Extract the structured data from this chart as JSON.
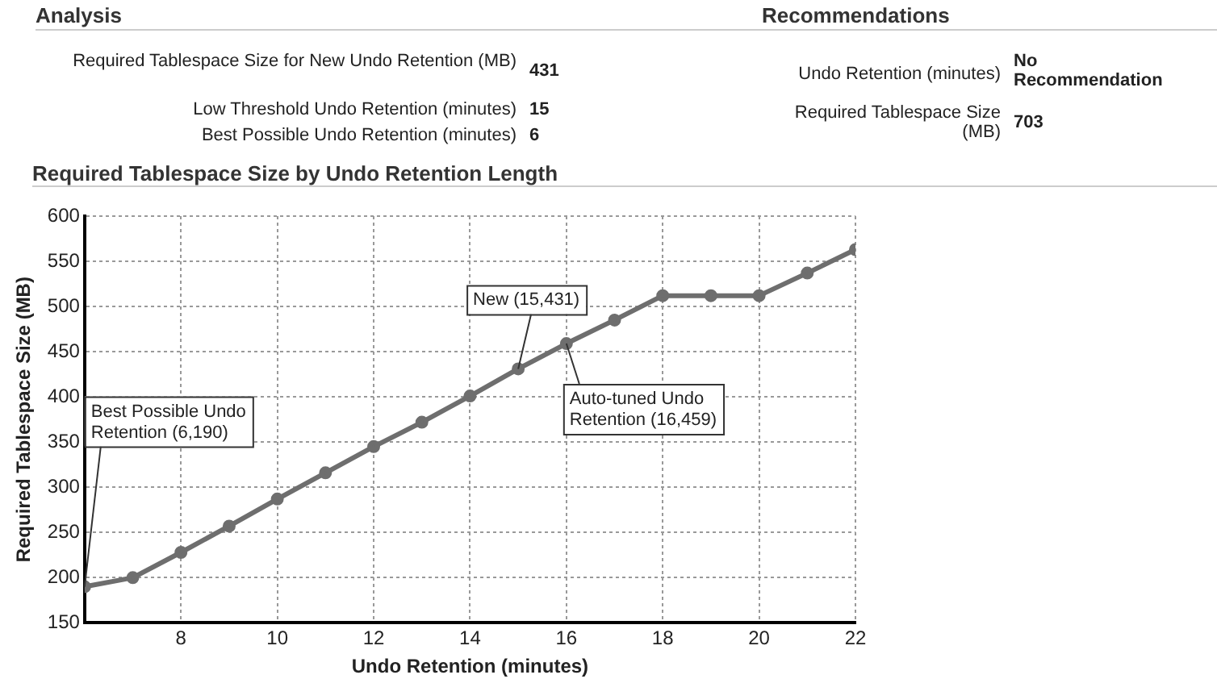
{
  "chart_data": {
    "type": "line",
    "title": "Required Tablespace Size by Undo Retention Length",
    "xlabel": "Undo Retention (minutes)",
    "ylabel": "Required Tablespace Size (MB)",
    "x": [
      6,
      7,
      8,
      9,
      10,
      11,
      12,
      13,
      14,
      15,
      16,
      17,
      18,
      19,
      20,
      21,
      22
    ],
    "series": [
      {
        "color": "#6e6e6e",
        "values": [
          190,
          200,
          228,
          257,
          287,
          316,
          345,
          372,
          401,
          431,
          459,
          485,
          512,
          512,
          512,
          537,
          563
        ]
      }
    ],
    "xlim": [
      6,
      22
    ],
    "xticks": [
      8,
      10,
      12,
      14,
      16,
      18,
      20,
      22
    ],
    "ylim": [
      150,
      600
    ],
    "yticks": [
      150,
      200,
      250,
      300,
      350,
      400,
      450,
      500,
      550,
      600
    ],
    "grid": true,
    "legend": false,
    "marker": "circle",
    "line_style": "solid",
    "annotations": [
      "Analysis",
      "Required Tablespace Size for New Undo Retention (MB)",
      "431",
      "Low Threshold Undo Retention (minutes)",
      "15",
      "Best Possible Undo Retention (minutes)",
      "6",
      "Recommendations",
      "Undo Retention (minutes)",
      "No Recommendation",
      "Required Tablespace Size (MB)",
      "703",
      {
        "text": "Best Possible Undo Retention (6,190)",
        "x": 6,
        "y": 190
      },
      {
        "text": "New (15,431)",
        "x": 15,
        "y": 431
      },
      {
        "text": "Auto-tuned Undo Retention (16,459)",
        "x": 16,
        "y": 459
      }
    ]
  }
}
